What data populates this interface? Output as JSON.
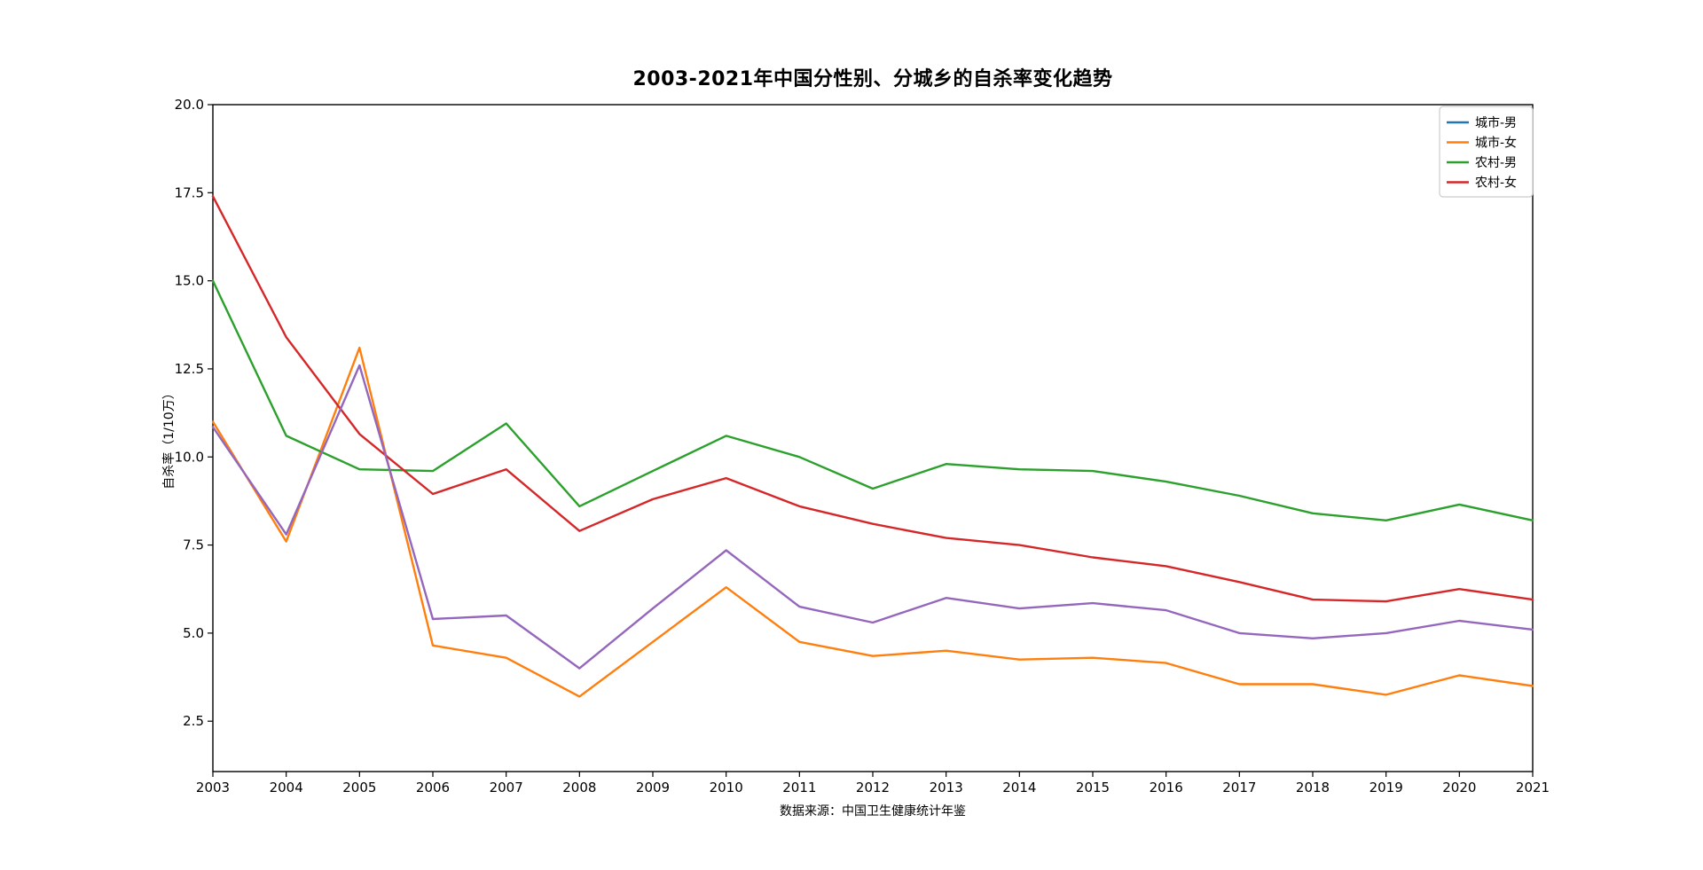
{
  "chart_data": {
    "type": "line",
    "title": "2003-2021年中国分性别、分城乡的自杀率变化趋势",
    "ylabel": "自杀率（1/10万）",
    "caption": "数据来源：中国卫生健康统计年鉴",
    "x": [
      2003,
      2004,
      2005,
      2006,
      2007,
      2008,
      2009,
      2010,
      2011,
      2012,
      2013,
      2014,
      2015,
      2016,
      2017,
      2018,
      2019,
      2020,
      2021
    ],
    "series": [
      {
        "id": "urban-male",
        "name": "城市-男",
        "legend_color": "#1f77b4",
        "line_color": "#9467bd",
        "values": [
          10.85,
          7.8,
          12.6,
          5.4,
          5.5,
          4.0,
          5.7,
          7.35,
          5.75,
          5.3,
          6.0,
          5.7,
          5.85,
          5.65,
          5.0,
          4.85,
          5.0,
          5.35,
          5.1
        ]
      },
      {
        "id": "urban-female",
        "name": "城市-女",
        "legend_color": "#ff7f0e",
        "line_color": "#ff7f0e",
        "values": [
          11.0,
          7.6,
          13.1,
          4.65,
          4.3,
          3.2,
          4.75,
          6.3,
          4.75,
          4.35,
          4.5,
          4.25,
          4.3,
          4.15,
          3.55,
          3.55,
          3.25,
          3.8,
          3.5
        ]
      },
      {
        "id": "rural-male",
        "name": "农村-男",
        "legend_color": "#2ca02c",
        "line_color": "#2ca02c",
        "values": [
          15.0,
          10.6,
          9.65,
          9.6,
          10.95,
          8.6,
          9.6,
          10.6,
          10.0,
          9.1,
          9.8,
          9.65,
          9.6,
          9.3,
          8.9,
          8.4,
          8.2,
          8.65,
          8.2
        ]
      },
      {
        "id": "rural-female",
        "name": "农村-女",
        "legend_color": "#d62728",
        "line_color": "#d62728",
        "values": [
          17.4,
          13.4,
          10.65,
          8.95,
          9.65,
          7.9,
          8.8,
          9.4,
          8.6,
          8.1,
          7.7,
          7.5,
          7.15,
          6.9,
          6.45,
          5.95,
          5.9,
          6.25,
          5.95
        ]
      }
    ],
    "y_axis": {
      "min": 1.07,
      "max": 20.0,
      "ticks": [
        2.5,
        5.0,
        7.5,
        10.0,
        12.5,
        15.0,
        17.5,
        20.0
      ],
      "tick_labels": [
        "2.5",
        "5.0",
        "7.5",
        "10.0",
        "12.5",
        "15.0",
        "17.5",
        "20.0"
      ]
    },
    "x_axis": {
      "tick_labels": [
        "2003",
        "2004",
        "2005",
        "2006",
        "2007",
        "2008",
        "2009",
        "2010",
        "2011",
        "2012",
        "2013",
        "2014",
        "2015",
        "2016",
        "2017",
        "2018",
        "2019",
        "2020",
        "2021"
      ]
    },
    "legend": {
      "position": "top-right",
      "entries": [
        "城市-男",
        "城市-女",
        "农村-男",
        "农村-女"
      ]
    },
    "grid": false,
    "background": "#ffffff",
    "draw_order": [
      1,
      2,
      3,
      0
    ],
    "note": "城市-男 的折线在图中呈紫色(#9467bd)，但图例色块为蓝色(#1f77b4)"
  }
}
